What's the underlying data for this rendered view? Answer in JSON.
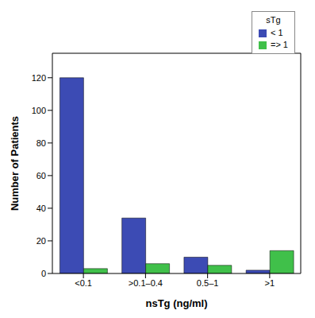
{
  "chart_data": {
    "type": "bar",
    "categories": [
      "<0.1",
      ">0.1–0.4",
      "0.5–1",
      ">1"
    ],
    "series": [
      {
        "name": "< 1",
        "color": "#3c4bb4",
        "values": [
          120,
          34,
          10,
          2
        ]
      },
      {
        "name": "=> 1",
        "color": "#40c04a",
        "values": [
          3,
          6,
          5,
          14
        ]
      }
    ],
    "x_label": "nsTg (ng/ml)",
    "y_label": "Number of Patients",
    "legend_title": "sTg",
    "ylim": [
      0,
      135
    ],
    "yticks": [
      0,
      20,
      40,
      60,
      80,
      100,
      120
    ],
    "legend": "upper right",
    "grid": false
  }
}
